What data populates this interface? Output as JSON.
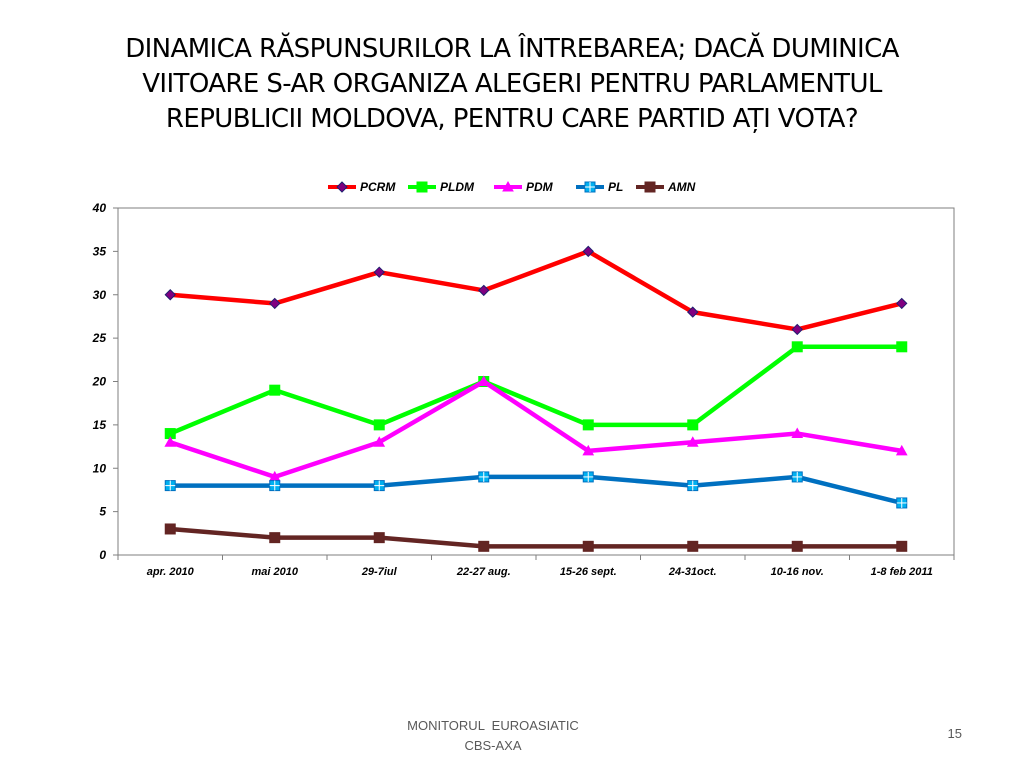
{
  "slide": {
    "title_lines": [
      "DINAMICA RĂSPUNSURILOR LA ÎNTREBAREA; DACĂ DUMINICA",
      "VIITOARE S-AR ORGANIZA ALEGERI PENTRU PARLAMENTUL",
      "REPUBLICII MOLDOVA, PENTRU CARE PARTID AȚI VOTA?"
    ],
    "footer_line1": "MONITORUL  EUROASIATIC",
    "footer_line2": "CBS-AXA",
    "page_number": "15"
  },
  "chart_data": {
    "type": "line",
    "title": "",
    "xlabel": "",
    "ylabel": "",
    "categories": [
      "apr. 2010",
      "mai 2010",
      "29-7iul",
      "22-27 aug.",
      "15-26 sept.",
      "24-31oct.",
      "10-16 nov.",
      "1-8 feb 2011"
    ],
    "ylim": [
      0,
      40
    ],
    "yticks": [
      0,
      5,
      10,
      15,
      20,
      25,
      30,
      35,
      40
    ],
    "grid": false,
    "legend_position": "top",
    "series": [
      {
        "name": "PCRM",
        "color": "#ff0000",
        "marker": "diamond",
        "marker_color": "#800080",
        "values": [
          30,
          29,
          32.6,
          30.5,
          35,
          28,
          26,
          29
        ]
      },
      {
        "name": "PLDM",
        "color": "#00ff00",
        "marker": "square",
        "marker_color": "#00ff00",
        "values": [
          14,
          19,
          15,
          20,
          15,
          15,
          24,
          24
        ]
      },
      {
        "name": "PDM",
        "color": "#ff00ff",
        "marker": "triangle",
        "marker_color": "#ff00ff",
        "values": [
          13,
          9,
          13,
          20,
          12,
          13,
          14,
          12
        ]
      },
      {
        "name": "PL",
        "color": "#0070c0",
        "marker": "square-cross",
        "marker_color": "#00b0f0",
        "values": [
          8,
          8,
          8,
          9,
          9,
          8,
          9,
          6
        ]
      },
      {
        "name": "AMN",
        "color": "#632523",
        "marker": "square",
        "marker_color": "#632523",
        "values": [
          3,
          2,
          2,
          1,
          1,
          1,
          1,
          1
        ]
      }
    ]
  }
}
